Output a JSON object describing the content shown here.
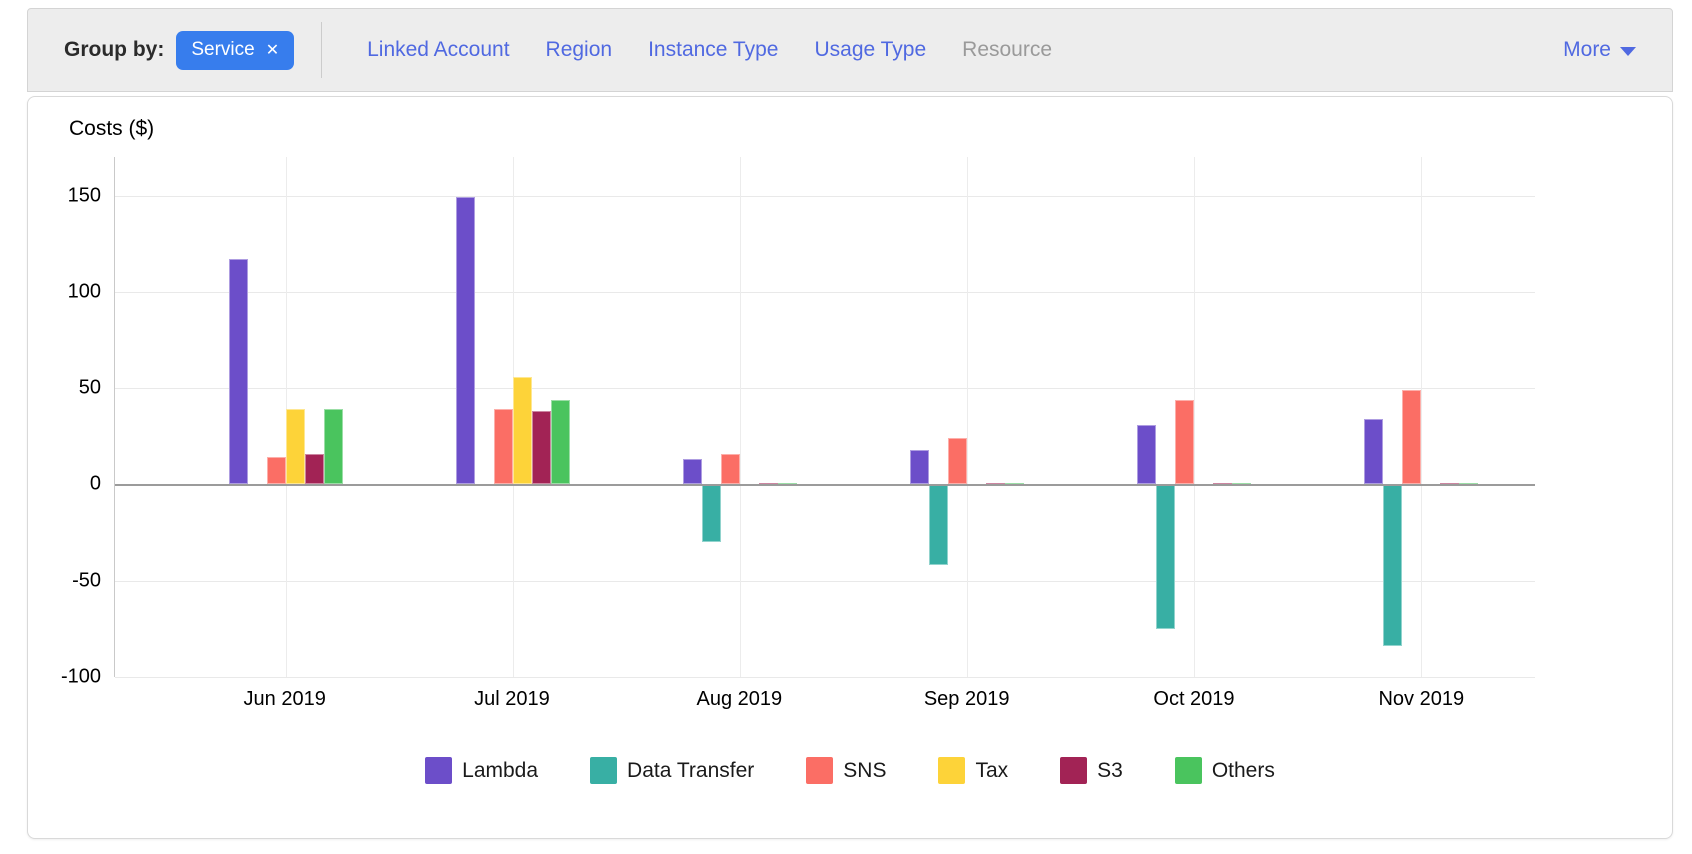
{
  "toolbar": {
    "group_by_label": "Group by:",
    "active_group": {
      "label": "Service",
      "remove_icon": "✕"
    },
    "options": [
      {
        "label": "Linked Account",
        "enabled": true
      },
      {
        "label": "Region",
        "enabled": true
      },
      {
        "label": "Instance Type",
        "enabled": true
      },
      {
        "label": "Usage Type",
        "enabled": true
      },
      {
        "label": "Resource",
        "enabled": false
      }
    ],
    "more_label": "More",
    "more_icon": "chevron-down",
    "colors": {
      "chip_bg": "#377ded",
      "chip_text": "#ffffff",
      "link_blue": "#5069e1",
      "disabled_gray": "#9a9a9a",
      "toolbar_bg": "#ededed"
    }
  },
  "chart_data": {
    "type": "bar",
    "title": "Costs ($)",
    "categories": [
      "Jun 2019",
      "Jul 2019",
      "Aug 2019",
      "Sep 2019",
      "Oct 2019",
      "Nov 2019"
    ],
    "series": [
      {
        "name": "Lambda",
        "color": "#6c4ec9",
        "values": [
          117,
          149,
          13,
          18,
          31,
          34
        ]
      },
      {
        "name": "Data Transfer",
        "color": "#38afa4",
        "values": [
          0,
          0,
          -30,
          -42,
          -75,
          -84
        ]
      },
      {
        "name": "SNS",
        "color": "#fb6e65",
        "values": [
          14,
          39,
          16,
          24,
          44,
          49
        ]
      },
      {
        "name": "Tax",
        "color": "#fdd339",
        "values": [
          39,
          56,
          0,
          0,
          0,
          0
        ]
      },
      {
        "name": "S3",
        "color": "#a22355",
        "values": [
          16,
          38,
          0.5,
          0.5,
          0.5,
          0.5
        ]
      },
      {
        "name": "Others",
        "color": "#4ac45e",
        "values": [
          39,
          44,
          0.5,
          0.5,
          0.5,
          0.5
        ]
      }
    ],
    "y_ticks": [
      150,
      100,
      50,
      0,
      -50,
      -100
    ],
    "ylim": [
      -100,
      170
    ],
    "xlabel": "",
    "ylabel": "Costs ($)",
    "grid": true,
    "zero_line_color": "#9b9b9b",
    "legend_position": "bottom"
  }
}
